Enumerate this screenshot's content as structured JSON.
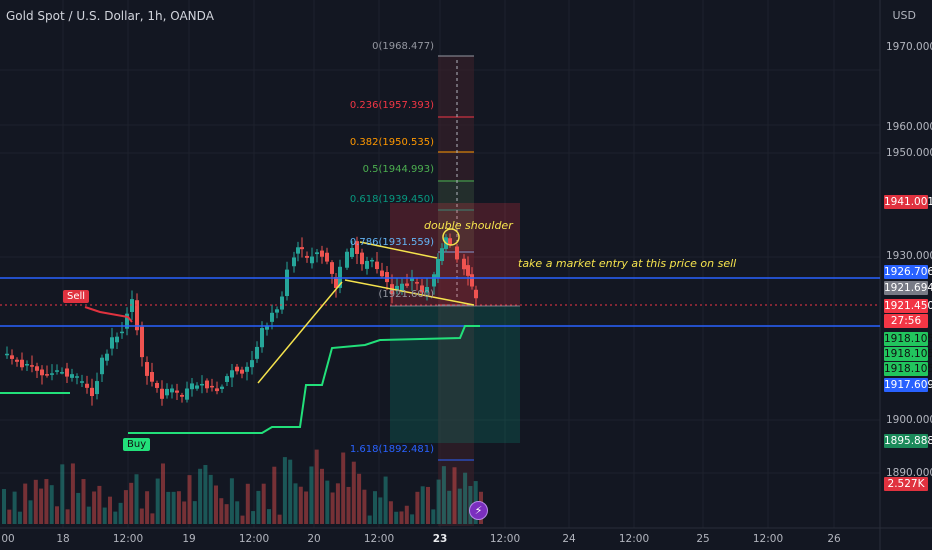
{
  "header": {
    "symbol_title": "Gold Spot / U.S. Dollar, 1h, OANDA",
    "currency": "USD"
  },
  "price_axis": {
    "ticks": [
      "1970.000",
      "1960.000",
      "1950.000",
      "1930.000",
      "1900.000",
      "1890.000"
    ]
  },
  "price_tags": [
    {
      "text": "1941.001",
      "color": "#e0323f"
    },
    {
      "text": "1926.706",
      "color": "#2962ff"
    },
    {
      "text": "1921.694",
      "color": "#787b86"
    },
    {
      "text": "1921.450",
      "color": "#f23645"
    },
    {
      "text": "27:56",
      "color": "#f23645"
    },
    {
      "text": "1918.105",
      "color": "#22c55e"
    },
    {
      "text": "1918.105",
      "color": "#22c55e"
    },
    {
      "text": "1918.105",
      "color": "#22c55e"
    },
    {
      "text": "1917.609",
      "color": "#2962ff"
    },
    {
      "text": "1895.888",
      "color": "#1b8a5a"
    },
    {
      "text": "2.527K",
      "color": "#e0323f"
    }
  ],
  "time_axis": {
    "labels": [
      "00",
      "18",
      "12:00",
      "19",
      "12:00",
      "20",
      "12:00",
      "23",
      "12:00",
      "24",
      "12:00",
      "25",
      "12:00",
      "26"
    ],
    "highlight": "23"
  },
  "fib_levels": [
    {
      "text": "0(1968.477)",
      "color": "#9598a1"
    },
    {
      "text": "0.236(1957.393)",
      "color": "#f23645"
    },
    {
      "text": "0.382(1950.535)",
      "color": "#ff9800"
    },
    {
      "text": "0.5(1944.993)",
      "color": "#4caf50"
    },
    {
      "text": "0.618(1939.450)",
      "color": "#089981"
    },
    {
      "text": "0.786(1931.559)",
      "color": "#64b5f6"
    },
    {
      "text": "(1921.600)",
      "color": "#9598a1"
    },
    {
      "text": "1.618(1892.481)",
      "color": "#2962ff"
    }
  ],
  "annotations": {
    "pattern_label": "double shoulder",
    "entry_note": "take a market entry at this price on sell"
  },
  "signals": {
    "sell_label": "Sell",
    "buy_label": "Buy"
  },
  "colors": {
    "background": "#131722",
    "bull": "#26a69a",
    "bear": "#ef5350",
    "trendline": "#f5e34d",
    "horizontal_line": "#2962ff",
    "supertrend_up": "#22e07a",
    "supertrend_down": "#e0323f"
  },
  "icons": {
    "alert": "lightning-bolt-icon"
  }
}
